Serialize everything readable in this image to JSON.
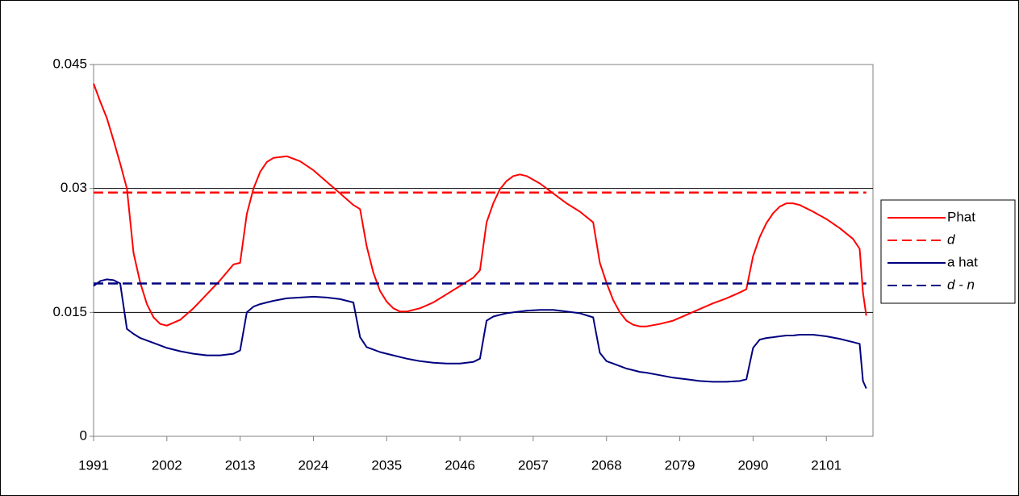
{
  "chart_data": {
    "type": "line",
    "x": [
      1991,
      1992,
      1993,
      1994,
      1995,
      1996,
      1997,
      1998,
      1999,
      2000,
      2001,
      2002,
      2004,
      2006,
      2008,
      2010,
      2012,
      2013,
      2014,
      2015,
      2016,
      2017,
      2018,
      2020,
      2022,
      2024,
      2026,
      2028,
      2030,
      2031,
      2032,
      2033,
      2034,
      2035,
      2036,
      2037,
      2038,
      2040,
      2042,
      2044,
      2046,
      2048,
      2049,
      2050,
      2051,
      2052,
      2053,
      2054,
      2055,
      2056,
      2058,
      2060,
      2062,
      2064,
      2066,
      2067,
      2068,
      2069,
      2070,
      2071,
      2072,
      2073,
      2074,
      2076,
      2078,
      2080,
      2082,
      2084,
      2086,
      2088,
      2089,
      2090,
      2091,
      2092,
      2093,
      2094,
      2095,
      2096,
      2097,
      2099,
      2101,
      2103,
      2105,
      2106,
      2106.5,
      2107
    ],
    "series": [
      {
        "name": "Phat",
        "color": "#ff0000",
        "dashed": false,
        "italic": false,
        "values": [
          0.0427,
          0.0405,
          0.0385,
          0.0358,
          0.033,
          0.03,
          0.0222,
          0.0186,
          0.016,
          0.0144,
          0.0136,
          0.0134,
          0.0141,
          0.0155,
          0.0172,
          0.0189,
          0.0208,
          0.021,
          0.0269,
          0.03,
          0.032,
          0.0332,
          0.0337,
          0.0339,
          0.0333,
          0.0322,
          0.0308,
          0.0294,
          0.028,
          0.0275,
          0.023,
          0.0198,
          0.0176,
          0.0163,
          0.0155,
          0.0151,
          0.0151,
          0.0155,
          0.0162,
          0.0172,
          0.0182,
          0.0192,
          0.0201,
          0.0259,
          0.0282,
          0.0299,
          0.0309,
          0.0315,
          0.0317,
          0.0315,
          0.0306,
          0.0294,
          0.0282,
          0.0272,
          0.0259,
          0.021,
          0.0186,
          0.0165,
          0.015,
          0.014,
          0.0135,
          0.0133,
          0.0133,
          0.0136,
          0.014,
          0.0147,
          0.0154,
          0.0161,
          0.0167,
          0.0174,
          0.0178,
          0.0218,
          0.0241,
          0.0258,
          0.027,
          0.0278,
          0.0282,
          0.0282,
          0.028,
          0.0272,
          0.0263,
          0.0252,
          0.0239,
          0.0227,
          0.0174,
          0.0146
        ]
      },
      {
        "name": "d",
        "color": "#ff0000",
        "dashed": true,
        "italic": true,
        "x": [
          1991,
          2107
        ],
        "values": [
          0.0295,
          0.0295
        ]
      },
      {
        "name": "a hat",
        "color": "#000080",
        "dashed": false,
        "italic": false,
        "values": [
          0.0182,
          0.0188,
          0.019,
          0.0189,
          0.0185,
          0.013,
          0.0124,
          0.0119,
          0.0116,
          0.0113,
          0.011,
          0.0107,
          0.0103,
          0.01,
          0.0098,
          0.0098,
          0.01,
          0.0104,
          0.015,
          0.0157,
          0.016,
          0.0162,
          0.0164,
          0.0167,
          0.0168,
          0.0169,
          0.0168,
          0.0166,
          0.0162,
          0.012,
          0.0108,
          0.0105,
          0.0102,
          0.01,
          0.0098,
          0.0096,
          0.0094,
          0.0091,
          0.0089,
          0.0088,
          0.0088,
          0.009,
          0.0094,
          0.014,
          0.0145,
          0.0147,
          0.0149,
          0.015,
          0.0151,
          0.0152,
          0.0153,
          0.0153,
          0.0151,
          0.0149,
          0.0144,
          0.0101,
          0.0091,
          0.0088,
          0.0085,
          0.0082,
          0.008,
          0.0078,
          0.0077,
          0.0074,
          0.0071,
          0.0069,
          0.0067,
          0.0066,
          0.0066,
          0.0067,
          0.0069,
          0.0107,
          0.0117,
          0.0119,
          0.012,
          0.0121,
          0.0122,
          0.0122,
          0.0123,
          0.0123,
          0.0121,
          0.0118,
          0.0114,
          0.0112,
          0.0067,
          0.0058
        ]
      },
      {
        "name": "d - n",
        "color": "#000080",
        "dashed": true,
        "italic": true,
        "x": [
          1991,
          2107
        ],
        "values": [
          0.0185,
          0.0185
        ]
      }
    ],
    "xlim": [
      1991,
      2108
    ],
    "xticks": [
      1991,
      2002,
      2013,
      2024,
      2035,
      2046,
      2057,
      2068,
      2079,
      2090,
      2101
    ],
    "ylim": [
      0,
      0.045
    ],
    "yticks": [
      0,
      0.015,
      0.03,
      0.045
    ],
    "grid": true,
    "legend": "right"
  }
}
